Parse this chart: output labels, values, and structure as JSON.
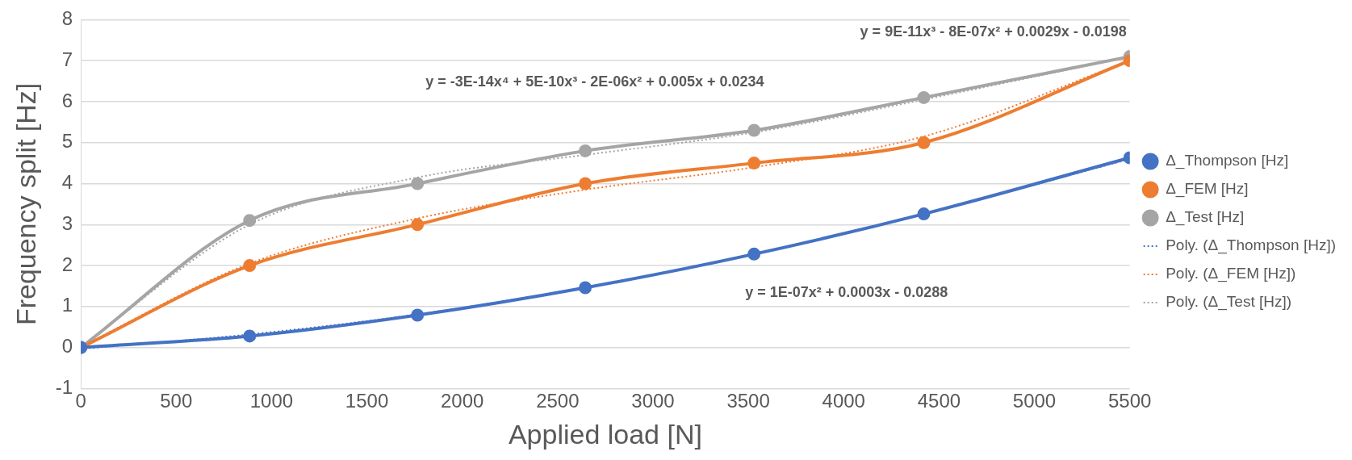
{
  "chart_data": {
    "type": "line",
    "xlabel": "Applied load [N]",
    "ylabel": "Frequency split [Hz]",
    "x": [
      0,
      885,
      1765,
      2645,
      3530,
      4420,
      5500
    ],
    "xlim": [
      0,
      5500
    ],
    "xticks": [
      0,
      500,
      1000,
      1500,
      2000,
      2500,
      3000,
      3500,
      4000,
      4500,
      5000,
      5500
    ],
    "ylim": [
      -1,
      8
    ],
    "yticks": [
      -1,
      0,
      1,
      2,
      3,
      4,
      5,
      6,
      7,
      8
    ],
    "grid": "y",
    "legend": "right",
    "marker": "circle",
    "line_style": "solid",
    "series": [
      {
        "name": "Δ_Thompson [Hz]",
        "color": "#4472c4",
        "values": [
          0,
          0.28,
          0.79,
          1.46,
          2.28,
          3.26,
          4.63
        ]
      },
      {
        "name": "Δ_FEM [Hz]",
        "color": "#ed7d31",
        "values": [
          0,
          2.0,
          3.0,
          4.0,
          4.5,
          5.0,
          7.0
        ]
      },
      {
        "name": "Δ_Test [Hz]",
        "color": "#a5a5a5",
        "values": [
          0,
          3.1,
          4.0,
          4.8,
          5.3,
          6.1,
          7.1
        ]
      },
      {
        "name": "Poly. (Δ_Thompson [Hz])",
        "color": "#4472c4",
        "type": "line",
        "marker": "none",
        "line_style": "dotted",
        "values": [
          -0.03,
          0.32,
          0.81,
          1.47,
          2.28,
          3.26,
          4.6
        ]
      },
      {
        "name": "Poly. (Δ_FEM [Hz])",
        "color": "#ed7d31",
        "type": "line",
        "marker": "none",
        "line_style": "dotted",
        "values": [
          0.02,
          2.05,
          3.15,
          3.85,
          4.4,
          5.15,
          7.0
        ]
      },
      {
        "name": "Poly. (Δ_Test [Hz])",
        "color": "#a5a5a5",
        "type": "line",
        "marker": "none",
        "line_style": "dotted",
        "values": [
          0.02,
          3.0,
          4.15,
          4.7,
          5.25,
          6.05,
          7.1
        ]
      }
    ],
    "annotations": [
      "y = -3E-14x⁴ + 5E-10x³ - 2E-06x² + 0.005x + 0.0234",
      "y = 9E-11x³ - 8E-07x² + 0.0029x - 0.0198",
      "y = 1E-07x² + 0.0003x - 0.0288"
    ]
  }
}
